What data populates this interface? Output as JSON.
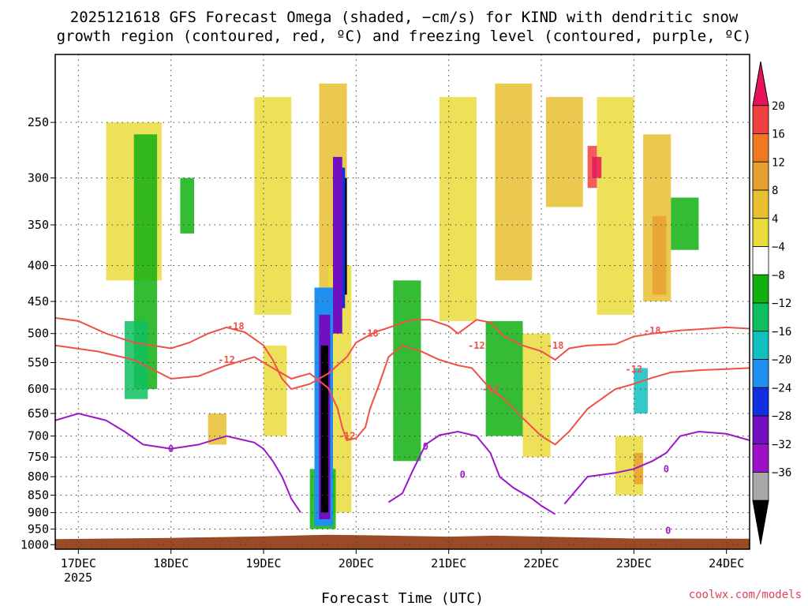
{
  "title_line1": "2025121618 GFS Forecast Omega (shaded, −cm/s) for KIND with dendritic snow",
  "title_line2": "growth region (contoured, red, ºC) and freezing level (contoured, purple, ºC)",
  "credit": "coolwx.com/models",
  "colors": {
    "isotherm_red": "#f0504a",
    "freezing_purple": "#9b17c8",
    "ground": "#9a4a24",
    "grid": "#444444"
  },
  "chart_data": {
    "type": "heatmap",
    "title": "2025121618 GFS Forecast Omega (shaded, −cm/s) for KIND with dendritic snow growth region (contoured, red, ºC) and freezing level (contoured, purple, ºC)",
    "xlabel": "Forecast Time (UTC)",
    "ylabel": "",
    "x_ticks": [
      "17DEC",
      "18DEC",
      "19DEC",
      "20DEC",
      "21DEC",
      "22DEC",
      "23DEC",
      "24DEC"
    ],
    "x_tick_year": "2025",
    "y_ticks": [
      "250",
      "300",
      "350",
      "400",
      "450",
      "500",
      "550",
      "600",
      "650",
      "700",
      "750",
      "800",
      "850",
      "900",
      "950",
      "1000"
    ],
    "y_scale": "log-pressure",
    "ylim_hpa": [
      1015,
      200
    ],
    "xlim_days_from_17dec00z": [
      -0.25,
      7.25
    ],
    "grid": true,
    "colorbar": {
      "ticks": [
        "20",
        "16",
        "12",
        "8",
        "4",
        "−4",
        "−8",
        "−12",
        "−16",
        "−20",
        "−24",
        "−28",
        "−32",
        "−36"
      ],
      "colors": [
        "#e8145a",
        "#f04040",
        "#f07820",
        "#e8a030",
        "#e8c030",
        "#eadc3c",
        "#ffffff",
        "#10b010",
        "#10c060",
        "#10c0c0",
        "#2090f0",
        "#1030e0",
        "#7010c0",
        "#9b10c8",
        "#a8a8a8",
        "#000000"
      ]
    },
    "contour_labels": {
      "red": [
        "-18",
        "-12",
        "-18",
        "-12",
        "-18",
        "-12",
        "-18",
        "-12",
        "-12"
      ],
      "purple": [
        "0",
        "0",
        "0",
        "0",
        "0"
      ]
    },
    "series": [
      {
        "name": "-18",
        "color": "red",
        "points": [
          [
            -0.25,
            475
          ],
          [
            0.0,
            480
          ],
          [
            0.3,
            500
          ],
          [
            0.6,
            515
          ],
          [
            1.0,
            525
          ],
          [
            1.2,
            515
          ],
          [
            1.4,
            500
          ],
          [
            1.6,
            490
          ],
          [
            1.8,
            498
          ],
          [
            2.0,
            520
          ],
          [
            2.1,
            545
          ],
          [
            2.2,
            580
          ],
          [
            2.3,
            600
          ],
          [
            2.5,
            590
          ],
          [
            2.7,
            570
          ],
          [
            2.9,
            540
          ],
          [
            3.0,
            515
          ],
          [
            3.2,
            498
          ],
          [
            3.4,
            488
          ],
          [
            3.6,
            478
          ],
          [
            3.8,
            478
          ],
          [
            4.0,
            488
          ],
          [
            4.1,
            500
          ],
          [
            4.3,
            478
          ],
          [
            4.45,
            482
          ],
          [
            4.6,
            505
          ],
          [
            4.8,
            520
          ],
          [
            5.0,
            530
          ],
          [
            5.15,
            545
          ],
          [
            5.3,
            525
          ],
          [
            5.5,
            520
          ],
          [
            5.8,
            518
          ],
          [
            6.0,
            505
          ],
          [
            6.2,
            500
          ],
          [
            6.5,
            495
          ],
          [
            6.8,
            492
          ],
          [
            7.0,
            490
          ],
          [
            7.25,
            492
          ]
        ]
      },
      {
        "name": "-12",
        "color": "red",
        "points": [
          [
            -0.25,
            520
          ],
          [
            0.2,
            530
          ],
          [
            0.6,
            545
          ],
          [
            1.0,
            580
          ],
          [
            1.3,
            575
          ],
          [
            1.6,
            555
          ],
          [
            1.9,
            540
          ],
          [
            2.1,
            560
          ],
          [
            2.3,
            580
          ],
          [
            2.5,
            570
          ],
          [
            2.7,
            598
          ],
          [
            2.8,
            640
          ],
          [
            2.85,
            680
          ],
          [
            2.9,
            710
          ],
          [
            3.0,
            705
          ],
          [
            3.1,
            680
          ],
          [
            3.15,
            640
          ],
          [
            3.25,
            590
          ],
          [
            3.35,
            540
          ],
          [
            3.5,
            520
          ],
          [
            3.7,
            530
          ],
          [
            3.9,
            545
          ],
          [
            4.1,
            555
          ],
          [
            4.25,
            560
          ],
          [
            4.45,
            600
          ],
          [
            4.6,
            620
          ],
          [
            4.8,
            660
          ],
          [
            5.0,
            700
          ],
          [
            5.15,
            720
          ],
          [
            5.3,
            690
          ],
          [
            5.5,
            640
          ],
          [
            5.8,
            600
          ],
          [
            6.0,
            590
          ],
          [
            6.2,
            578
          ],
          [
            6.4,
            568
          ],
          [
            6.7,
            564
          ],
          [
            7.0,
            562
          ],
          [
            7.25,
            560
          ]
        ]
      },
      {
        "name": "0",
        "color": "purple",
        "points": [
          [
            -0.25,
            665
          ],
          [
            0.0,
            650
          ],
          [
            0.3,
            665
          ],
          [
            0.5,
            690
          ],
          [
            0.7,
            720
          ],
          [
            1.0,
            730
          ],
          [
            1.3,
            720
          ],
          [
            1.6,
            700
          ],
          [
            1.9,
            715
          ],
          [
            2.0,
            730
          ],
          [
            2.1,
            760
          ],
          [
            2.2,
            800
          ],
          [
            2.3,
            860
          ],
          [
            2.4,
            900
          ]
        ]
      },
      {
        "name": "0",
        "color": "purple",
        "points": [
          [
            3.35,
            870
          ],
          [
            3.5,
            845
          ],
          [
            3.6,
            790
          ],
          [
            3.75,
            720
          ],
          [
            3.9,
            698
          ],
          [
            4.1,
            690
          ],
          [
            4.3,
            700
          ],
          [
            4.45,
            740
          ],
          [
            4.55,
            800
          ],
          [
            4.7,
            830
          ],
          [
            4.9,
            860
          ],
          [
            5.0,
            880
          ],
          [
            5.15,
            905
          ]
        ]
      },
      {
        "name": "0",
        "color": "purple",
        "points": [
          [
            5.25,
            875
          ],
          [
            5.5,
            800
          ],
          [
            5.8,
            790
          ],
          [
            6.0,
            780
          ],
          [
            6.2,
            760
          ],
          [
            6.35,
            740
          ],
          [
            6.5,
            700
          ],
          [
            6.7,
            690
          ],
          [
            7.0,
            695
          ],
          [
            7.25,
            710
          ]
        ]
      }
    ]
  }
}
